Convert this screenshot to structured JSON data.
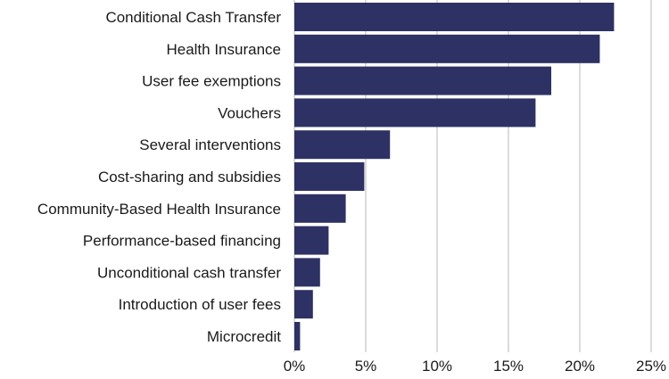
{
  "chart_data": {
    "type": "bar",
    "orientation": "horizontal",
    "categories": [
      "Conditional Cash Transfer",
      "Health Insurance",
      "User fee exemptions",
      "Vouchers",
      "Several interventions",
      "Cost-sharing and subsidies",
      "Community-Based Health Insurance",
      "Performance-based financing",
      "Unconditional cash transfer",
      "Introduction of user fees",
      "Microcredit"
    ],
    "values": [
      22.4,
      21.4,
      18.0,
      16.9,
      6.7,
      4.9,
      3.6,
      2.4,
      1.8,
      1.3,
      0.4
    ],
    "xlim": [
      0,
      25
    ],
    "x_ticks": [
      0,
      5,
      10,
      15,
      20,
      25
    ],
    "x_tick_labels": [
      "0%",
      "5%",
      "10%",
      "15%",
      "20%",
      "25%"
    ],
    "grid": "vertical",
    "bar_color": "#2e3163",
    "grid_color": "#b8b8b8",
    "title": "",
    "xlabel": "",
    "ylabel": ""
  }
}
